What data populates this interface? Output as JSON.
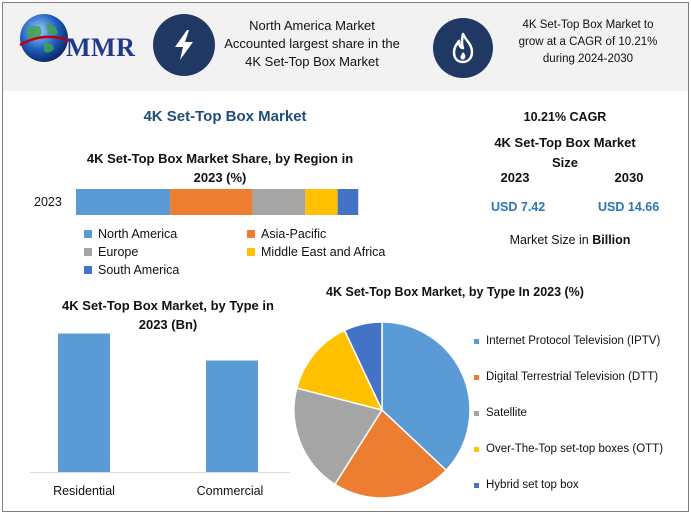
{
  "header": {
    "logo_text": "MMR",
    "highlight_1": [
      "North America Market",
      "Accounted largest share in the",
      "4K Set-Top Box Market"
    ],
    "highlight_2": [
      "4K Set-Top Box Market to",
      "grow at a CAGR of 10.21%",
      "during 2024-2030"
    ],
    "icons": [
      "lightning-icon",
      "flame-icon"
    ]
  },
  "main_title": "4K Set-Top Box Market",
  "stats": {
    "cagr": "10.21% CAGR",
    "size_title": "4K Set-Top Box Market Size",
    "year_1": "2023",
    "year_2": "2030",
    "value_1": "USD 7.42",
    "value_2": "USD 14.66",
    "unit_prefix": "Market Size in ",
    "unit_bold": "Billion"
  },
  "colors": {
    "blue": "#5b9bd5",
    "orange": "#ed7d31",
    "gray": "#a5a5a5",
    "yellow": "#ffc000",
    "dark_blue": "#4472c4",
    "navy": "#1f3864"
  },
  "chart_data": [
    {
      "type": "bar",
      "orientation": "horizontal-stacked",
      "title": "4K Set-Top Box Market Share, by Region in 2023 (%)",
      "categories": [
        "2023"
      ],
      "series": [
        {
          "name": "North America",
          "values": [
            32
          ]
        },
        {
          "name": "Asia-Pacific",
          "values": [
            28
          ]
        },
        {
          "name": "Europe",
          "values": [
            18
          ]
        },
        {
          "name": "Middle East and Africa",
          "values": [
            11
          ]
        },
        {
          "name": "South America",
          "values": [
            7
          ]
        }
      ],
      "xlim": [
        0,
        100
      ],
      "grid": false,
      "legend": "bottom"
    },
    {
      "type": "bar",
      "title": "4K Set-Top Box Market, by Type in 2023 (Bn)",
      "categories": [
        "Residential",
        "Commercial"
      ],
      "values": [
        4.1,
        3.3
      ],
      "ylim": [
        0,
        4.5
      ],
      "grid": false
    },
    {
      "type": "pie",
      "title": "4K Set-Top Box Market, by Type In 2023 (%)",
      "labels": [
        "Internet Protocol Television (IPTV)",
        "Digital Terrestrial Television (DTT)",
        "Satellite",
        "Over-The-Top set-top boxes (OTT)",
        "Hybrid set top box"
      ],
      "values": [
        37,
        22,
        20,
        14,
        7
      ],
      "legend": "right"
    }
  ]
}
